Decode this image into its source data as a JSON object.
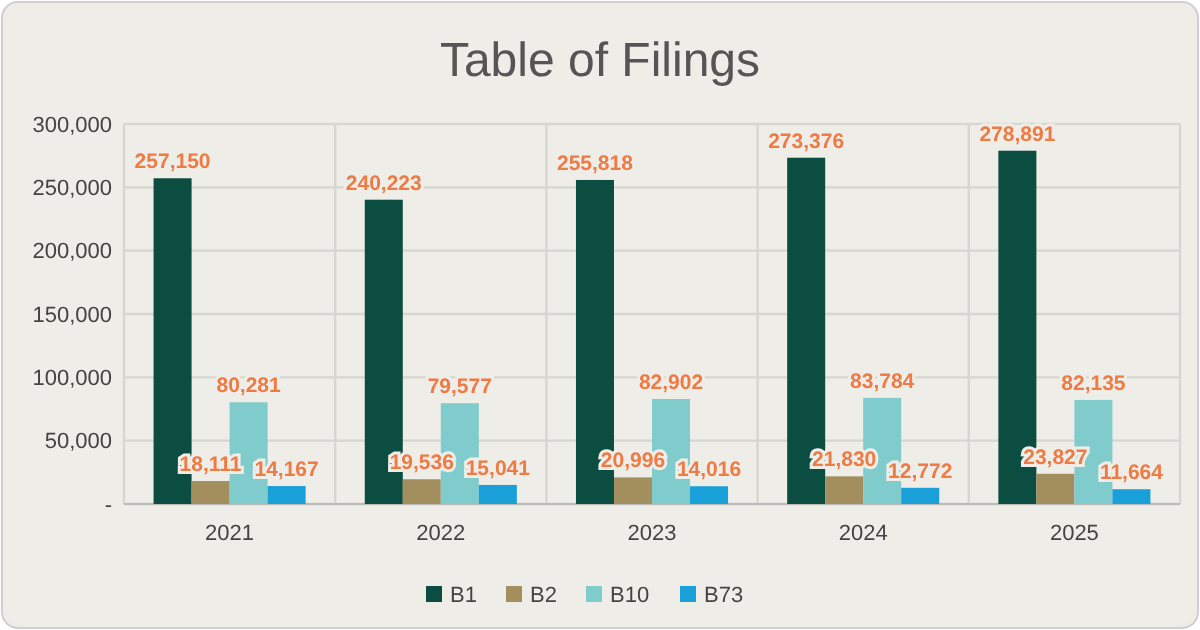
{
  "chart_data": {
    "type": "bar",
    "title": "Table of Filings",
    "categories": [
      "2021",
      "2022",
      "2023",
      "2024",
      "2025"
    ],
    "series": [
      {
        "name": "B1",
        "color": "#0b4d40",
        "values": [
          257150,
          240223,
          255818,
          273376,
          278891
        ],
        "value_labels": [
          "257,150",
          "240,223",
          "255,818",
          "273,376",
          "278,891"
        ]
      },
      {
        "name": "B2",
        "color": "#a38f5e",
        "values": [
          18111,
          19536,
          20996,
          21830,
          23827
        ],
        "value_labels": [
          "18,111",
          "19,536",
          "20,996",
          "21,830",
          "23,827"
        ]
      },
      {
        "name": "B10",
        "color": "#80cbcc",
        "values": [
          80281,
          79577,
          82902,
          83784,
          82135
        ],
        "value_labels": [
          "80,281",
          "79,577",
          "82,902",
          "83,784",
          "82,135"
        ]
      },
      {
        "name": "B73",
        "color": "#1aa0d8",
        "values": [
          14167,
          15041,
          14016,
          12772,
          11664
        ],
        "value_labels": [
          "14,167",
          "15,041",
          "14,016",
          "12,772",
          "11,664"
        ]
      }
    ],
    "ylim": [
      0,
      300000
    ],
    "yticks": [
      {
        "value": 0,
        "label": "-"
      },
      {
        "value": 50000,
        "label": "50,000"
      },
      {
        "value": 100000,
        "label": "100,000"
      },
      {
        "value": 150000,
        "label": "150,000"
      },
      {
        "value": 200000,
        "label": "200,000"
      },
      {
        "value": 250000,
        "label": "250,000"
      },
      {
        "value": 300000,
        "label": "300,000"
      }
    ],
    "grid": true,
    "legend": "bottom"
  }
}
